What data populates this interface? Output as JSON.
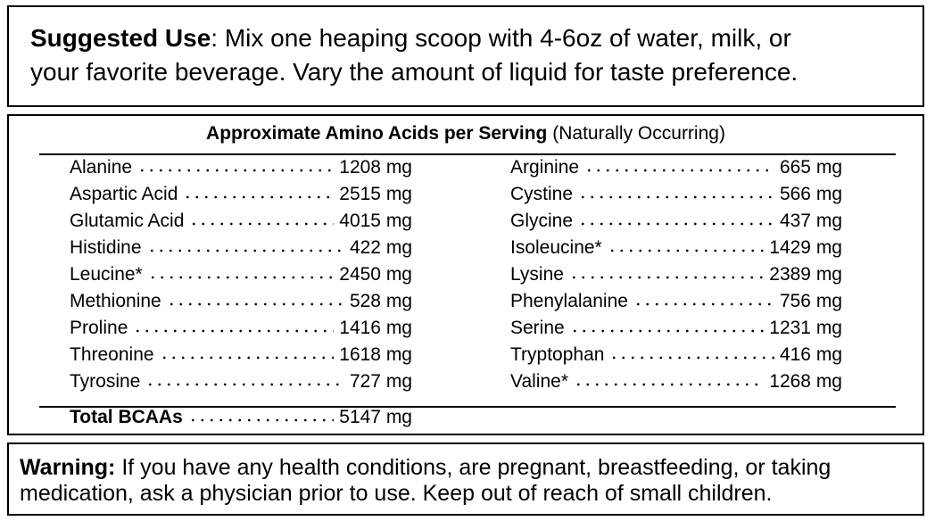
{
  "suggested_use": {
    "label": "Suggested Use",
    "lines": [
      ": Mix one heaping scoop with 4-6oz of water, milk, or",
      "your favorite beverage. Vary the amount of liquid for taste preference."
    ]
  },
  "amino_table": {
    "title": "Approximate Amino Acids per Serving",
    "subtitle": "(Naturally Occurring)",
    "left": [
      {
        "name": "Alanine",
        "amount": "1208 mg"
      },
      {
        "name": "Aspartic Acid",
        "amount": "2515 mg"
      },
      {
        "name": "Glutamic Acid",
        "amount": "4015 mg"
      },
      {
        "name": "Histidine",
        "amount": "422 mg"
      },
      {
        "name": "Leucine*",
        "amount": "2450 mg"
      },
      {
        "name": "Methionine",
        "amount": "528 mg"
      },
      {
        "name": "Proline",
        "amount": "1416 mg"
      },
      {
        "name": "Threonine",
        "amount": "1618 mg"
      },
      {
        "name": "Tyrosine",
        "amount": "727 mg"
      }
    ],
    "right": [
      {
        "name": "Arginine",
        "amount": "665 mg"
      },
      {
        "name": "Cystine",
        "amount": "566 mg"
      },
      {
        "name": "Glycine",
        "amount": "437 mg"
      },
      {
        "name": "Isoleucine*",
        "amount": "1429 mg"
      },
      {
        "name": "Lysine",
        "amount": "2389 mg"
      },
      {
        "name": "Phenylalanine",
        "amount": "756 mg"
      },
      {
        "name": "Serine",
        "amount": "1231 mg"
      },
      {
        "name": "Tryptophan",
        "amount": "416 mg"
      },
      {
        "name": "Valine*",
        "amount": "1268 mg"
      }
    ],
    "total": {
      "name": "Total BCAAs",
      "amount": "5147 mg"
    }
  },
  "warning": {
    "label": "Warning:",
    "lines": [
      "If you have any health conditions, are pregnant, breastfeeding, or taking",
      "medication, ask a physician prior to use. Keep out of reach of small children."
    ]
  }
}
